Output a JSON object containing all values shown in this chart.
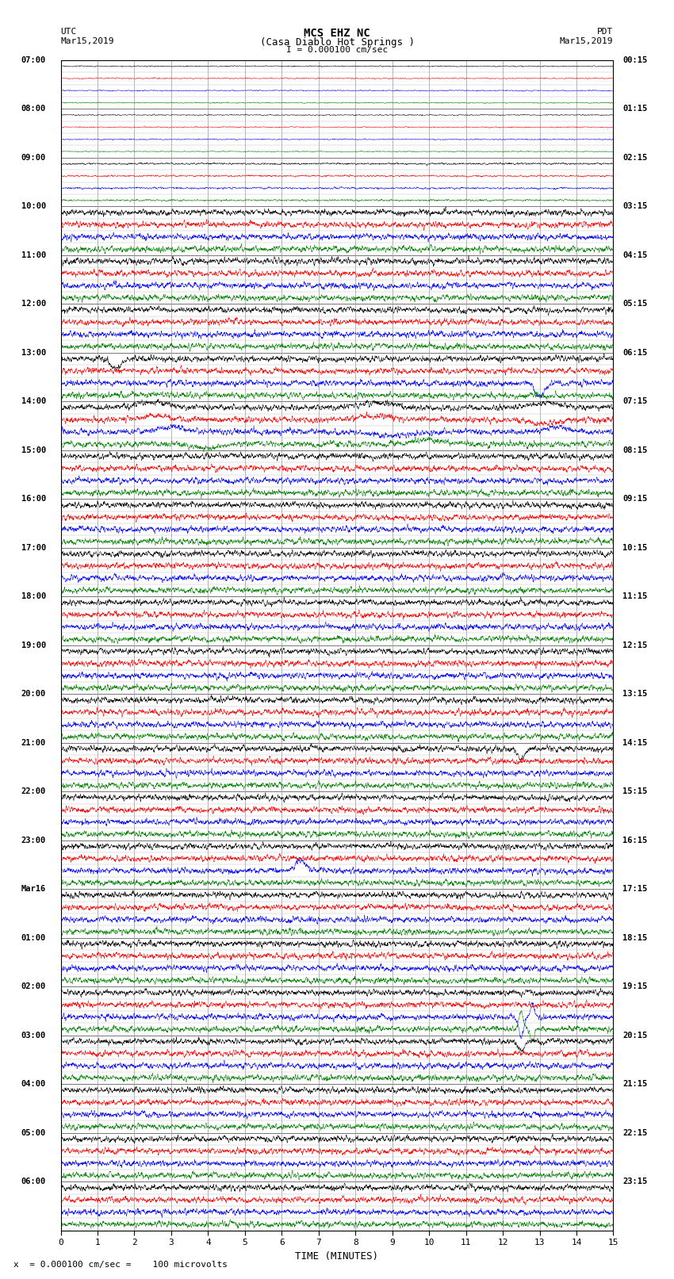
{
  "title_line1": "MCS EHZ NC",
  "title_line2": "(Casa Diablo Hot Springs )",
  "title_line3": "I = 0.000100 cm/sec",
  "left_header_line1": "UTC",
  "left_header_line2": "Mar15,2019",
  "right_header_line1": "PDT",
  "right_header_line2": "Mar15,2019",
  "xlabel": "TIME (MINUTES)",
  "footer_text": "x  = 0.000100 cm/sec =    100 microvolts",
  "xlim": [
    0,
    15
  ],
  "xticks": [
    0,
    1,
    2,
    3,
    4,
    5,
    6,
    7,
    8,
    9,
    10,
    11,
    12,
    13,
    14,
    15
  ],
  "utc_labels": [
    "07:00",
    "",
    "",
    "",
    "08:00",
    "",
    "",
    "",
    "09:00",
    "",
    "",
    "",
    "10:00",
    "",
    "",
    "",
    "11:00",
    "",
    "",
    "",
    "12:00",
    "",
    "",
    "",
    "13:00",
    "",
    "",
    "",
    "14:00",
    "",
    "",
    "",
    "15:00",
    "",
    "",
    "",
    "16:00",
    "",
    "",
    "",
    "17:00",
    "",
    "",
    "",
    "18:00",
    "",
    "",
    "",
    "19:00",
    "",
    "",
    "",
    "20:00",
    "",
    "",
    "",
    "21:00",
    "",
    "",
    "",
    "22:00",
    "",
    "",
    "",
    "23:00",
    "",
    "",
    "",
    "Mar16",
    "",
    "",
    "",
    "01:00",
    "",
    "",
    "",
    "02:00",
    "",
    "",
    "",
    "03:00",
    "",
    "",
    "",
    "04:00",
    "",
    "",
    "",
    "05:00",
    "",
    "",
    "",
    "06:00",
    "",
    "",
    ""
  ],
  "pdt_labels": [
    "00:15",
    "",
    "",
    "",
    "01:15",
    "",
    "",
    "",
    "02:15",
    "",
    "",
    "",
    "03:15",
    "",
    "",
    "",
    "04:15",
    "",
    "",
    "",
    "05:15",
    "",
    "",
    "",
    "06:15",
    "",
    "",
    "",
    "07:15",
    "",
    "",
    "",
    "08:15",
    "",
    "",
    "",
    "09:15",
    "",
    "",
    "",
    "10:15",
    "",
    "",
    "",
    "11:15",
    "",
    "",
    "",
    "12:15",
    "",
    "",
    "",
    "13:15",
    "",
    "",
    "",
    "14:15",
    "",
    "",
    "",
    "15:15",
    "",
    "",
    "",
    "16:15",
    "",
    "",
    "",
    "17:15",
    "",
    "",
    "",
    "18:15",
    "",
    "",
    "",
    "19:15",
    "",
    "",
    "",
    "20:15",
    "",
    "",
    "",
    "21:15",
    "",
    "",
    "",
    "22:15",
    "",
    "",
    "",
    "23:15",
    "",
    "",
    ""
  ],
  "colors_cycle": [
    "black",
    "red",
    "blue",
    "green"
  ],
  "n_rows": 96,
  "bg_color": "white",
  "grid_color": "#999999"
}
